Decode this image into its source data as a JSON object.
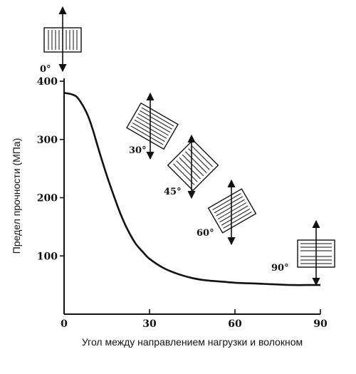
{
  "chart_data": {
    "type": "line",
    "xlabel": "Угол между направлением нагрузки и волокном",
    "ylabel": "Предел прочности (МПа)",
    "xlim": [
      0,
      90
    ],
    "ylim": [
      0,
      400
    ],
    "x_ticks": [
      "0",
      "30",
      "60",
      "90"
    ],
    "y_ticks": [
      "100",
      "200",
      "300",
      "400"
    ],
    "grid": false,
    "series": [
      {
        "x": [
          0,
          3,
          5,
          8,
          10,
          12,
          15,
          18,
          20,
          22,
          25,
          28,
          30,
          35,
          40,
          45,
          50,
          55,
          60,
          65,
          70,
          75,
          80,
          85,
          90
        ],
        "y": [
          380,
          377,
          370,
          345,
          318,
          285,
          238,
          196,
          170,
          148,
          122,
          105,
          95,
          79,
          69,
          62,
          58,
          56,
          54,
          53,
          52,
          51,
          50,
          50,
          50
        ]
      }
    ],
    "annotations": [
      {
        "label": "0°",
        "angle": 0
      },
      {
        "label": "30°",
        "angle": 30
      },
      {
        "label": "45°",
        "angle": 45
      },
      {
        "label": "60°",
        "angle": 60
      },
      {
        "label": "90°",
        "angle": 90
      }
    ]
  }
}
